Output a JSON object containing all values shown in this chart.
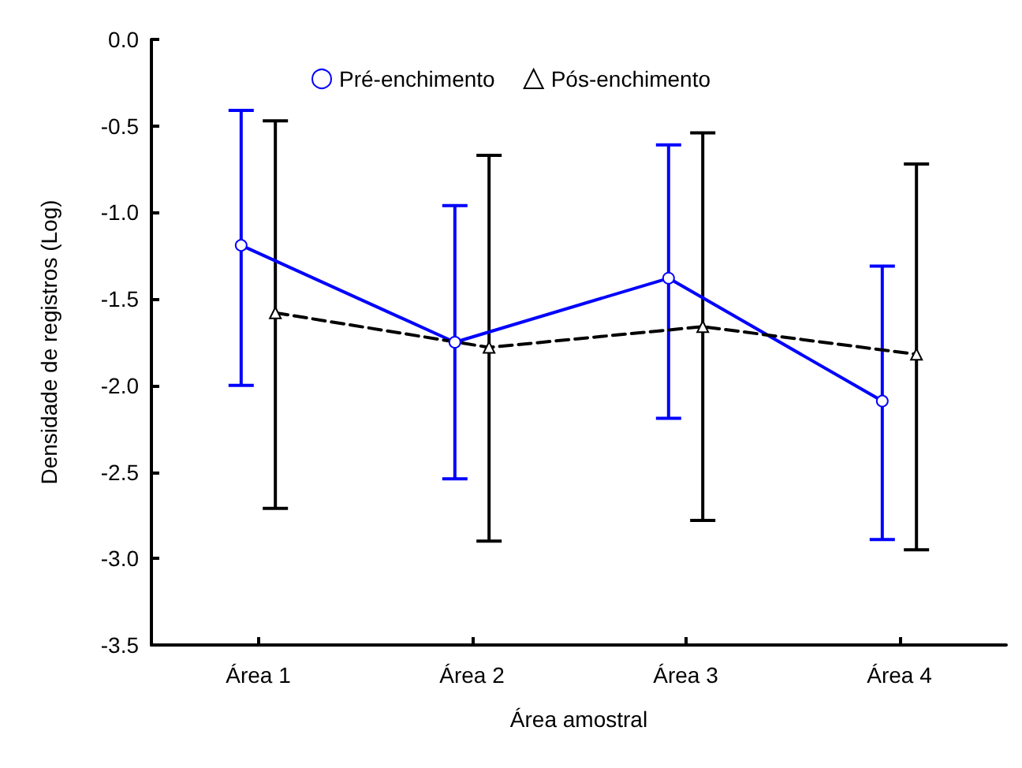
{
  "chart_data": {
    "type": "line",
    "xlabel": "Área amostral",
    "ylabel": "Densidade de registros (Log)",
    "categories": [
      "Área 1",
      "Área 2",
      "Área 3",
      "Área 4"
    ],
    "series": [
      {
        "name": "Pré-enchimento",
        "color": "#0000ff",
        "marker": "circle",
        "line_style": "solid",
        "values": [
          -1.19,
          -1.75,
          -1.38,
          -2.09
        ],
        "errors": [
          [
            -2.0,
            -0.41
          ],
          [
            -2.54,
            -0.96
          ],
          [
            -2.19,
            -0.61
          ],
          [
            -2.89,
            -1.31
          ]
        ]
      },
      {
        "name": "Pós-enchimento",
        "color": "#000000",
        "marker": "triangle",
        "line_style": "dashed",
        "values": [
          -1.58,
          -1.78,
          -1.66,
          -1.82
        ],
        "errors": [
          [
            -2.71,
            -0.47
          ],
          [
            -2.9,
            -0.67
          ],
          [
            -2.78,
            -0.54
          ],
          [
            -2.95,
            -0.72
          ]
        ]
      }
    ],
    "ylim": [
      -3.5,
      0.0
    ],
    "yticks": [
      -3.5,
      {
        "value": -3,
        "label": "-3.0"
      },
      -2.5,
      {
        "value": -2,
        "label": "-2.0"
      },
      -1.5,
      {
        "value": -1,
        "label": "-1.0"
      },
      -0.5,
      {
        "value": 0,
        "label": "0.0"
      }
    ],
    "grid": false,
    "legend": "top"
  }
}
